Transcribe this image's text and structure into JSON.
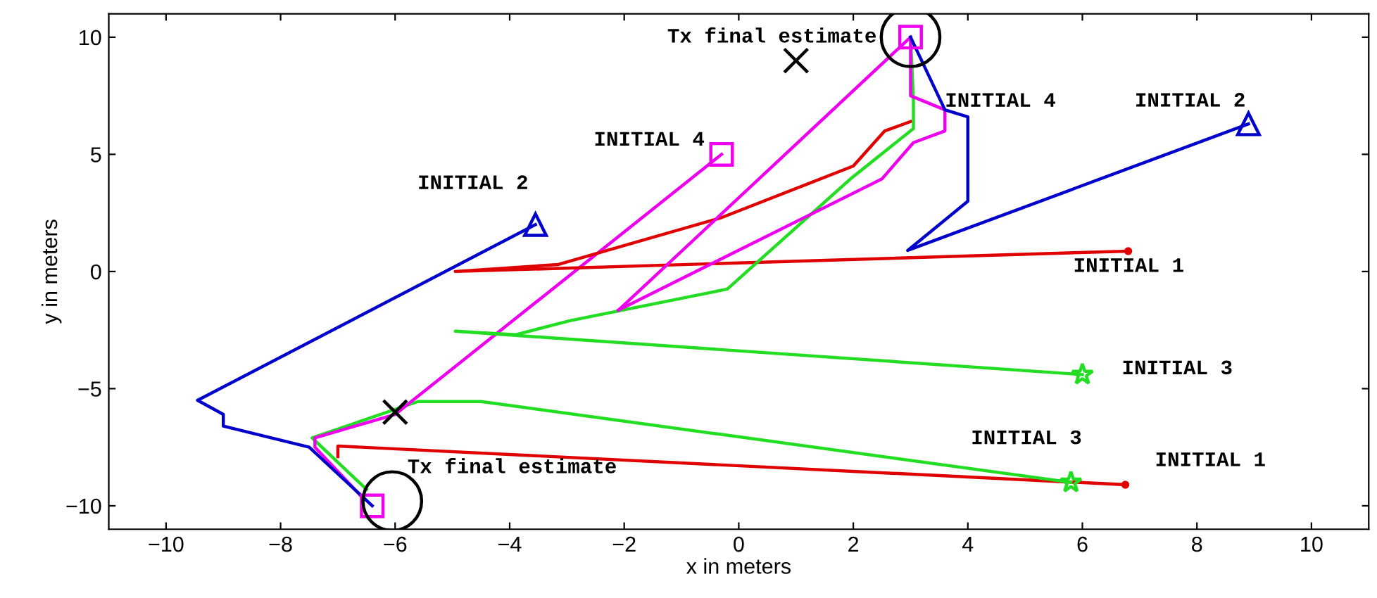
{
  "chart_data": {
    "type": "line",
    "xlabel": "x in meters",
    "ylabel": "y in meters",
    "xlim": [
      -11,
      11
    ],
    "ylim": [
      -11,
      11
    ],
    "xticks": [
      {
        "value": -10,
        "label": "−10"
      },
      {
        "value": -8,
        "label": "−8"
      },
      {
        "value": -6,
        "label": "−6"
      },
      {
        "value": -4,
        "label": "−4"
      },
      {
        "value": -2,
        "label": "−2"
      },
      0,
      2,
      4,
      6,
      8,
      10
    ],
    "yticks": [
      {
        "value": -10,
        "label": "−10"
      },
      {
        "value": -5,
        "label": "−5"
      },
      0,
      5,
      10
    ],
    "grid": false,
    "legend": false,
    "line_style": "solid",
    "series": [
      {
        "type": "line",
        "color": "#e00000",
        "marker": "none",
        "x": [
          6.75,
          -7.0,
          -7.0
        ],
        "values": [
          -9.1,
          -7.45,
          -7.9
        ]
      },
      {
        "type": "line",
        "color": "#22dd22",
        "marker": "none",
        "x": [
          5.8,
          -4.5,
          -5.6,
          -7.45,
          -6.5
        ],
        "values": [
          -9.0,
          -5.55,
          -5.55,
          -7.1,
          -9.3
        ]
      },
      {
        "type": "line",
        "color": "#ee00ee",
        "marker": "none",
        "x": [
          -0.3,
          -6.0,
          -7.4,
          -7.4,
          -6.55
        ],
        "values": [
          5.0,
          -6.1,
          -7.1,
          -7.5,
          -9.7
        ]
      },
      {
        "type": "line",
        "color": "#0000cc",
        "marker": "none",
        "x": [
          -3.55,
          -9.45,
          -9.0,
          -9.0,
          -7.5,
          -6.4
        ],
        "values": [
          2.0,
          -5.5,
          -6.1,
          -6.6,
          -7.5,
          -10.0
        ]
      },
      {
        "type": "line",
        "color": "#e00000",
        "marker": "none",
        "x": [
          6.8,
          -4.95,
          -3.15,
          -0.3,
          2.0,
          2.55,
          3.0
        ],
        "values": [
          0.87,
          0.0,
          0.3,
          2.3,
          4.5,
          6.0,
          6.4
        ]
      },
      {
        "type": "line",
        "color": "#22dd22",
        "marker": "none",
        "x": [
          6.0,
          -4.95,
          -3.9,
          -2.95,
          -0.2,
          1.95,
          3.05,
          3.05,
          3.0
        ],
        "values": [
          -4.4,
          -2.55,
          -2.7,
          -2.1,
          -0.75,
          3.95,
          6.1,
          7.3,
          10.0
        ]
      },
      {
        "color": "#ee00ee",
        "marker": "none",
        "x": [
          3.0,
          3.0,
          3.6,
          3.6,
          3.05,
          2.5,
          -2.1
        ],
        "values": [
          10.0,
          7.5,
          6.9,
          6.0,
          5.5,
          3.95,
          -1.65
        ]
      },
      {
        "color": "#ee00ee",
        "marker": "none",
        "x": [
          -2.1,
          3.0
        ],
        "values": [
          -1.65,
          10.0
        ]
      },
      {
        "type": "line",
        "color": "#0000cc",
        "marker": "none",
        "x": [
          8.9,
          2.95,
          4.0,
          4.0,
          3.6,
          3.0
        ],
        "values": [
          6.3,
          0.9,
          3.0,
          6.6,
          6.9,
          10.0
        ]
      },
      {
        "type": "scatter",
        "color": "#0000cc",
        "marker": "triangle",
        "x": [
          -3.55,
          8.9
        ],
        "values": [
          2.0,
          6.3
        ]
      },
      {
        "type": "scatter",
        "color": "#22dd22",
        "marker": "star",
        "x": [
          6.0,
          5.8
        ],
        "values": [
          -4.4,
          -9.0
        ]
      },
      {
        "type": "scatter",
        "color": "#e00000",
        "marker": "dot",
        "x": [
          6.8,
          6.75
        ],
        "values": [
          0.87,
          -9.1
        ]
      },
      {
        "type": "scatter",
        "color": "#ee00ee",
        "marker": "square",
        "x": [
          -0.3,
          3.0,
          -6.4
        ],
        "values": [
          5.0,
          10.0,
          -10.0
        ]
      },
      {
        "type": "scatter",
        "color": "#000000",
        "marker": "cross",
        "x": [
          1.0,
          -6.0
        ],
        "values": [
          9.0,
          -6.0
        ]
      },
      {
        "type": "scatter",
        "color": "#000000",
        "marker": "circle",
        "x": [
          3.0,
          -6.05
        ],
        "values": [
          10.0,
          -9.8
        ]
      }
    ],
    "annotations": [
      {
        "text": "Tx final estimate",
        "x": 3.0,
        "y": 10.0
      },
      {
        "text": "Tx final estimate",
        "x": -6.4,
        "y": -10.0
      },
      {
        "text": "INITIAL 4",
        "x": -0.3,
        "y": 5.0
      },
      {
        "text": "INITIAL 2",
        "x": -3.55,
        "y": 2.0
      },
      {
        "text": "INITIAL 4",
        "x": 3.6,
        "y": 6.9
      },
      {
        "text": "INITIAL 2",
        "x": 8.9,
        "y": 6.3
      },
      {
        "text": "INITIAL 1",
        "x": 6.8,
        "y": 0.87
      },
      {
        "text": "INITIAL 3",
        "x": 6.0,
        "y": -4.4
      },
      {
        "text": "INITIAL 3",
        "x": 5.8,
        "y": -9.0
      },
      {
        "text": "INITIAL 1",
        "x": 6.75,
        "y": -9.1
      }
    ]
  }
}
